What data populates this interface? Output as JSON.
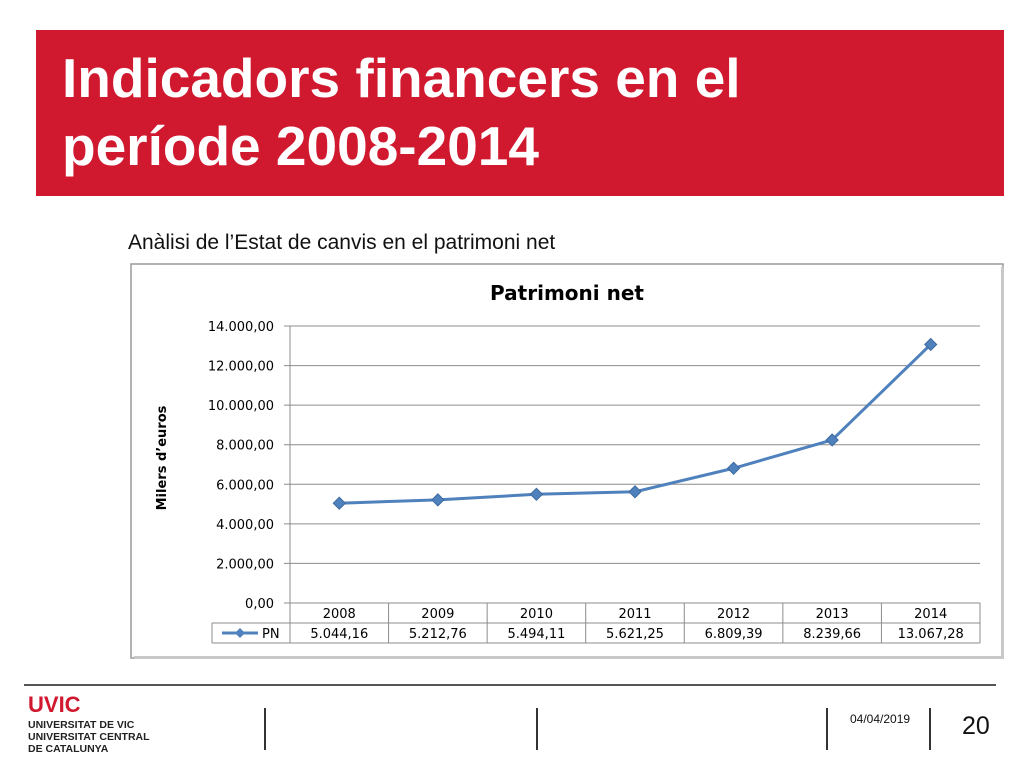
{
  "slide": {
    "title_line1": "Indicadors financers en el",
    "title_line2": "període 2008-2014",
    "subtitle": "Anàlisi de l’Estat de canvis en el patrimoni net",
    "accent_color": "#d0182f"
  },
  "chart_data": {
    "type": "line",
    "title": "Patrimoni net",
    "ylabel": "Milers d’euros",
    "xlabel": "",
    "categories": [
      "2008",
      "2009",
      "2010",
      "2011",
      "2012",
      "2013",
      "2014"
    ],
    "series": [
      {
        "name": "PN",
        "values": [
          5044.16,
          5212.76,
          5494.11,
          5621.25,
          6809.39,
          8239.66,
          13067.28
        ],
        "value_labels": [
          "5.044,16",
          "5.212,76",
          "5.494,11",
          "5.621,25",
          "6.809,39",
          "8.239,66",
          "13.067,28"
        ],
        "color": "#4f81bd",
        "marker": "diamond"
      }
    ],
    "ylim": [
      0,
      14000
    ],
    "yticks": [
      0,
      2000,
      4000,
      6000,
      8000,
      10000,
      12000,
      14000
    ],
    "ytick_labels": [
      "0,00",
      "2.000,00",
      "4.000,00",
      "6.000,00",
      "8.000,00",
      "10.000,00",
      "12.000,00",
      "14.000,00"
    ],
    "grid": true,
    "legend": "data-table",
    "data_table": true
  },
  "footer": {
    "logo_mark_u": "U",
    "logo_mark_vic": "VIC",
    "logo_line1": "UNIVERSITAT DE VIC",
    "logo_line2": "UNIVERSITAT CENTRAL",
    "logo_line3": "DE CATALUNYA",
    "date": "04/04/2019",
    "page_number": "20"
  }
}
